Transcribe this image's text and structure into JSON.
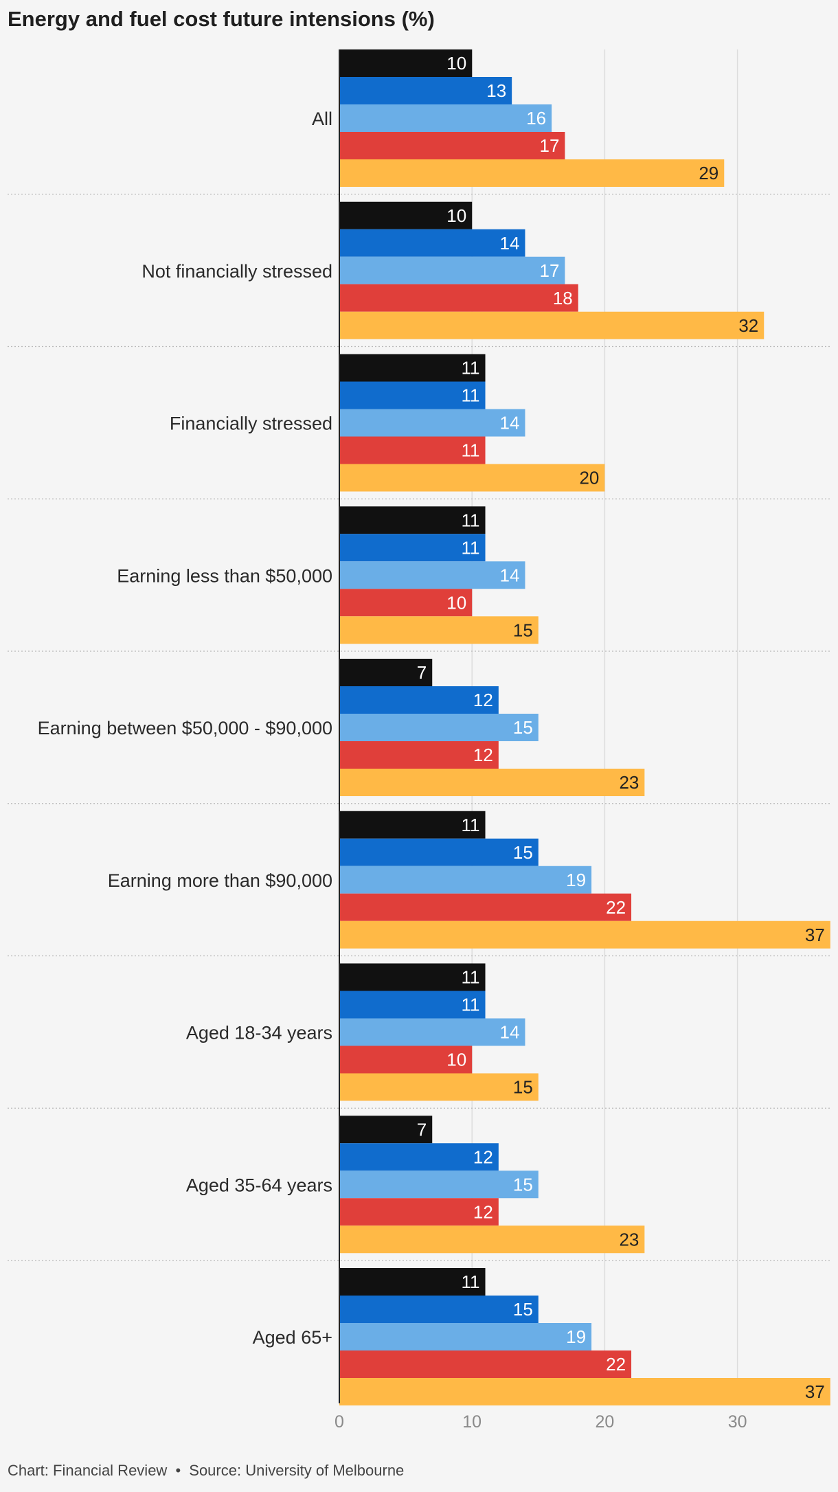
{
  "title": "Energy and fuel cost future intensions (%)",
  "footer": {
    "chart_credit": "Chart: Financial Review",
    "separator": "•",
    "source": "Source: University of Melbourne"
  },
  "chart_data": {
    "type": "bar",
    "orientation": "horizontal",
    "title": "Energy and fuel cost future intensions (%)",
    "xlim": [
      0,
      37
    ],
    "x_ticks": [
      0,
      10,
      20,
      30
    ],
    "grid": true,
    "legend": "none",
    "colors": [
      "#111111",
      "#106ccd",
      "#6aaee7",
      "#e03f3a",
      "#ffb946"
    ],
    "label_colors": [
      "#ffffff",
      "#ffffff",
      "#ffffff",
      "#ffffff",
      "#222222"
    ],
    "categories": [
      "All",
      "Not financially stressed",
      "Financially stressed",
      "Earning less than $50,000",
      "Earning between $50,000 - $90,000",
      "Earning more than $90,000",
      "Aged 18-34 years",
      "Aged 35-64 years",
      "Aged 65+"
    ],
    "series": [
      {
        "values": [
          10,
          10,
          11,
          11,
          7,
          11,
          11,
          7,
          11
        ]
      },
      {
        "values": [
          13,
          14,
          11,
          11,
          12,
          15,
          11,
          12,
          15
        ]
      },
      {
        "values": [
          16,
          17,
          14,
          14,
          15,
          19,
          14,
          15,
          19
        ]
      },
      {
        "values": [
          17,
          18,
          11,
          10,
          12,
          22,
          10,
          12,
          22
        ]
      },
      {
        "values": [
          29,
          32,
          20,
          15,
          23,
          37,
          15,
          23,
          37
        ]
      }
    ]
  }
}
